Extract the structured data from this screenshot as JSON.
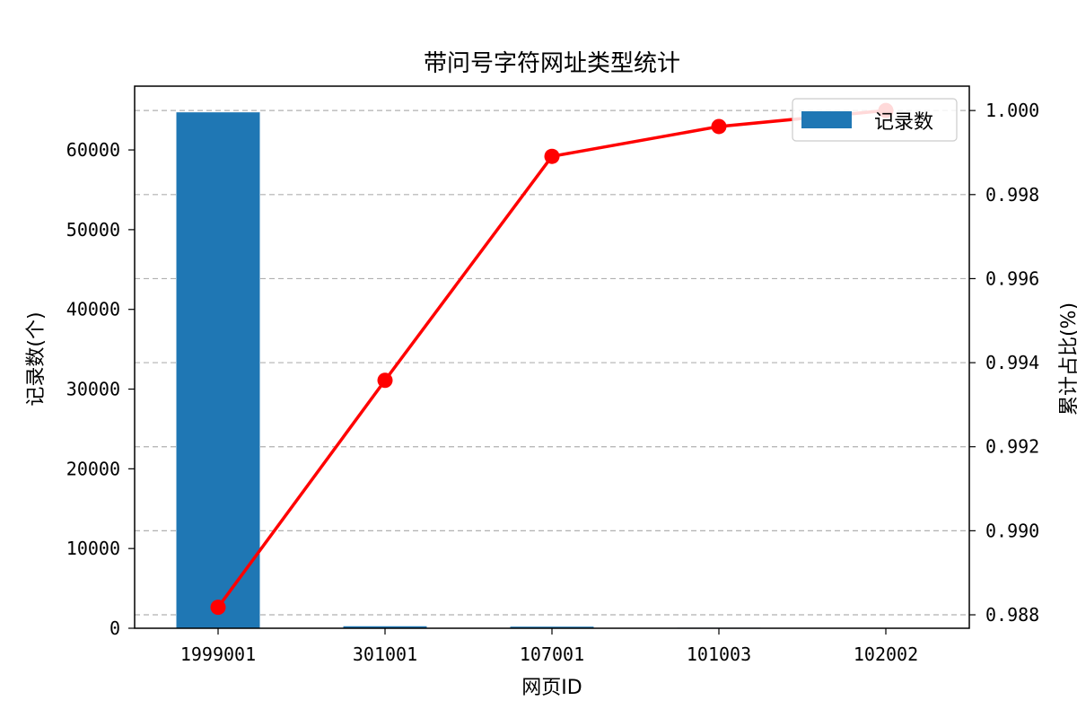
{
  "chart_data": {
    "type": "bar",
    "title": "带问号字符网址类型统计",
    "xlabel": "网页ID",
    "ylabel": "记录数(个)",
    "y2label": "累计占比(%)",
    "categories": [
      "1999001",
      "301001",
      "107001",
      "101003",
      "102002"
    ],
    "series": [
      {
        "name": "记录数",
        "type": "bar",
        "axis": "left",
        "color": "#1f77b4",
        "values": [
          64718,
          251,
          201,
          65,
          38
        ]
      },
      {
        "type": "line",
        "axis": "right",
        "color": "#ff0000",
        "values": [
          0.98818,
          0.99358,
          0.99891,
          0.99962,
          1.0
        ]
      }
    ],
    "ylim": [
      0,
      68000
    ],
    "y2lim": [
      0.98768,
      1.00058
    ],
    "yticks": [
      0,
      10000,
      20000,
      30000,
      40000,
      50000,
      60000
    ],
    "y2ticks": [
      "0.988",
      "0.990",
      "0.992",
      "0.994",
      "0.996",
      "0.998",
      "1.000"
    ],
    "grid": "horizontal-dashed",
    "legend_position": "top-right"
  }
}
